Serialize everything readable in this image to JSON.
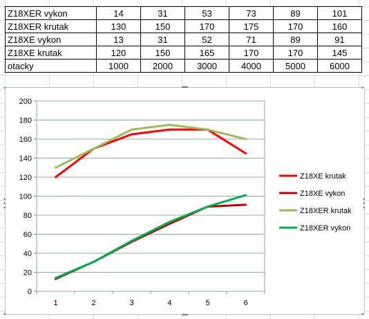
{
  "table": {
    "rows": [
      {
        "label": "Z18XER vykon",
        "values": [
          "14",
          "31",
          "53",
          "73",
          "89",
          "101"
        ]
      },
      {
        "label": "Z18XER krutak",
        "values": [
          "130",
          "150",
          "170",
          "175",
          "170",
          "160"
        ]
      },
      {
        "label": "Z18XE vykon",
        "values": [
          "13",
          "31",
          "52",
          "71",
          "89",
          "91"
        ]
      },
      {
        "label": "Z18XE krutak",
        "values": [
          "120",
          "150",
          "165",
          "170",
          "170",
          "145"
        ]
      },
      {
        "label": "otacky",
        "values": [
          "1000",
          "2000",
          "3000",
          "4000",
          "5000",
          "6000"
        ]
      }
    ]
  },
  "chart_data": {
    "type": "line",
    "x": [
      1,
      2,
      3,
      4,
      5,
      6
    ],
    "ylim": [
      0,
      200
    ],
    "y_ticks": [
      0,
      20,
      40,
      60,
      80,
      100,
      120,
      140,
      160,
      180,
      200
    ],
    "grid": "horizontal",
    "legend_position": "right",
    "series": [
      {
        "name": "Z18XE krutak",
        "color": "#ff0000",
        "values": [
          120,
          150,
          165,
          170,
          170,
          145
        ]
      },
      {
        "name": "Z18XE vykon",
        "color": "#c00000",
        "values": [
          13,
          31,
          52,
          71,
          89,
          91
        ]
      },
      {
        "name": "Z18XER krutak",
        "color": "#9bbb59",
        "values": [
          130,
          150,
          170,
          175,
          170,
          160
        ]
      },
      {
        "name": "Z18XER vykon",
        "color": "#00b050",
        "values": [
          14,
          31,
          53,
          73,
          89,
          101
        ]
      }
    ]
  }
}
